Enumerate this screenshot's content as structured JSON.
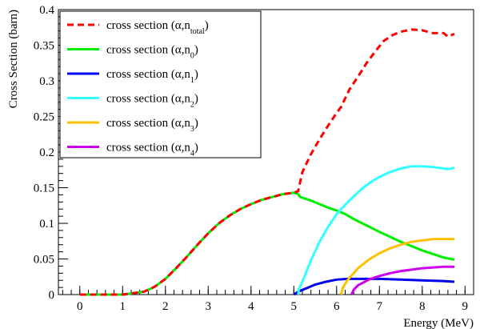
{
  "chart_data": {
    "type": "line",
    "xlabel": "Energy (MeV)",
    "ylabel": "Cross Section (barn)",
    "xlim": [
      -0.5,
      9.2
    ],
    "ylim": [
      0,
      0.4
    ],
    "x_ticks": [
      0,
      1,
      2,
      3,
      4,
      5,
      6,
      7,
      8,
      9
    ],
    "y_ticks": [
      0,
      0.05,
      0.1,
      0.15,
      0.2,
      0.25,
      0.3,
      0.35,
      0.4
    ],
    "y_tick_labels": [
      "0",
      "0.05",
      "0.1",
      "0.15",
      "0.2",
      "0.25",
      "0.3",
      "0.35",
      "0.4"
    ],
    "grid": false,
    "legend_position": "top-left",
    "series": [
      {
        "name": "cross section (α,n_total)",
        "label_main": "cross section (α,n",
        "label_sub": "total",
        "label_end": ")",
        "color": "#ff0000",
        "dash": true,
        "points": [
          [
            0.0,
            0.0
          ],
          [
            1.0,
            0.0
          ],
          [
            1.5,
            0.004
          ],
          [
            1.75,
            0.011
          ],
          [
            2.0,
            0.022
          ],
          [
            2.25,
            0.037
          ],
          [
            2.5,
            0.053
          ],
          [
            2.75,
            0.07
          ],
          [
            3.0,
            0.086
          ],
          [
            3.25,
            0.1
          ],
          [
            3.5,
            0.111
          ],
          [
            3.75,
            0.12
          ],
          [
            4.0,
            0.127
          ],
          [
            4.25,
            0.133
          ],
          [
            4.5,
            0.137
          ],
          [
            4.75,
            0.141
          ],
          [
            5.0,
            0.143
          ],
          [
            5.1,
            0.145
          ],
          [
            5.2,
            0.172
          ],
          [
            5.4,
            0.197
          ],
          [
            5.6,
            0.218
          ],
          [
            5.8,
            0.237
          ],
          [
            6.0,
            0.255
          ],
          [
            6.1,
            0.263
          ],
          [
            6.3,
            0.288
          ],
          [
            6.5,
            0.306
          ],
          [
            6.7,
            0.325
          ],
          [
            6.9,
            0.341
          ],
          [
            7.1,
            0.356
          ],
          [
            7.3,
            0.364
          ],
          [
            7.5,
            0.369
          ],
          [
            7.75,
            0.372
          ],
          [
            8.0,
            0.371
          ],
          [
            8.25,
            0.367
          ],
          [
            8.5,
            0.367
          ],
          [
            8.6,
            0.362
          ],
          [
            8.75,
            0.366
          ]
        ]
      },
      {
        "name": "cross section (α,n_0)",
        "label_main": "cross section (α,n",
        "label_sub": "0",
        "label_end": ")",
        "color": "#00ee00",
        "dash": false,
        "points": [
          [
            0.0,
            0.0
          ],
          [
            1.0,
            0.0
          ],
          [
            1.5,
            0.004
          ],
          [
            1.75,
            0.011
          ],
          [
            2.0,
            0.022
          ],
          [
            2.25,
            0.037
          ],
          [
            2.5,
            0.053
          ],
          [
            2.75,
            0.07
          ],
          [
            3.0,
            0.086
          ],
          [
            3.25,
            0.1
          ],
          [
            3.5,
            0.111
          ],
          [
            3.75,
            0.12
          ],
          [
            4.0,
            0.127
          ],
          [
            4.25,
            0.133
          ],
          [
            4.5,
            0.137
          ],
          [
            4.75,
            0.141
          ],
          [
            5.0,
            0.143
          ],
          [
            5.1,
            0.141
          ],
          [
            5.15,
            0.137
          ],
          [
            5.4,
            0.132
          ],
          [
            5.6,
            0.127
          ],
          [
            5.8,
            0.122
          ],
          [
            6.0,
            0.118
          ],
          [
            6.2,
            0.113
          ],
          [
            6.4,
            0.106
          ],
          [
            6.6,
            0.1
          ],
          [
            6.8,
            0.094
          ],
          [
            7.0,
            0.088
          ],
          [
            7.25,
            0.081
          ],
          [
            7.5,
            0.074
          ],
          [
            7.75,
            0.068
          ],
          [
            8.0,
            0.062
          ],
          [
            8.25,
            0.057
          ],
          [
            8.5,
            0.052
          ],
          [
            8.75,
            0.049
          ]
        ]
      },
      {
        "name": "cross section (α,n_1)",
        "label_main": "cross section (α,n",
        "label_sub": "1",
        "label_end": ")",
        "color": "#0000ee",
        "dash": false,
        "points": [
          [
            5.0,
            0.0
          ],
          [
            5.1,
            0.004
          ],
          [
            5.3,
            0.009
          ],
          [
            5.5,
            0.014
          ],
          [
            5.75,
            0.018
          ],
          [
            6.0,
            0.021
          ],
          [
            6.25,
            0.022
          ],
          [
            6.5,
            0.022
          ],
          [
            7.0,
            0.022
          ],
          [
            7.5,
            0.021
          ],
          [
            8.0,
            0.02
          ],
          [
            8.5,
            0.019
          ],
          [
            8.75,
            0.018
          ]
        ]
      },
      {
        "name": "cross section (α,n_2)",
        "label_main": "cross section (α,n",
        "label_sub": "2",
        "label_end": ")",
        "color": "#33ffff",
        "dash": false,
        "points": [
          [
            5.1,
            0.0
          ],
          [
            5.12,
            0.008
          ],
          [
            5.2,
            0.018
          ],
          [
            5.4,
            0.048
          ],
          [
            5.6,
            0.074
          ],
          [
            5.8,
            0.095
          ],
          [
            6.0,
            0.113
          ],
          [
            6.2,
            0.126
          ],
          [
            6.4,
            0.138
          ],
          [
            6.6,
            0.149
          ],
          [
            6.8,
            0.158
          ],
          [
            7.0,
            0.165
          ],
          [
            7.25,
            0.172
          ],
          [
            7.5,
            0.177
          ],
          [
            7.75,
            0.18
          ],
          [
            8.0,
            0.18
          ],
          [
            8.25,
            0.179
          ],
          [
            8.5,
            0.177
          ],
          [
            8.6,
            0.176
          ],
          [
            8.75,
            0.178
          ]
        ]
      },
      {
        "name": "cross section (α,n_3)",
        "label_main": "cross section (α,n",
        "label_sub": "3",
        "label_end": ")",
        "color": "#ffc000",
        "dash": false,
        "points": [
          [
            6.1,
            0.0
          ],
          [
            6.15,
            0.01
          ],
          [
            6.25,
            0.02
          ],
          [
            6.5,
            0.037
          ],
          [
            6.75,
            0.049
          ],
          [
            7.0,
            0.058
          ],
          [
            7.25,
            0.065
          ],
          [
            7.5,
            0.07
          ],
          [
            7.75,
            0.074
          ],
          [
            8.0,
            0.076
          ],
          [
            8.25,
            0.078
          ],
          [
            8.5,
            0.078
          ],
          [
            8.75,
            0.078
          ]
        ]
      },
      {
        "name": "cross section (α,n_4)",
        "label_main": "cross section (α,n",
        "label_sub": "4",
        "label_end": ")",
        "color": "#cc00ee",
        "dash": false,
        "points": [
          [
            6.35,
            0.0
          ],
          [
            6.4,
            0.007
          ],
          [
            6.5,
            0.013
          ],
          [
            6.75,
            0.021
          ],
          [
            7.0,
            0.026
          ],
          [
            7.25,
            0.03
          ],
          [
            7.5,
            0.033
          ],
          [
            7.75,
            0.035
          ],
          [
            8.0,
            0.037
          ],
          [
            8.25,
            0.038
          ],
          [
            8.5,
            0.039
          ],
          [
            8.75,
            0.039
          ]
        ]
      }
    ]
  }
}
